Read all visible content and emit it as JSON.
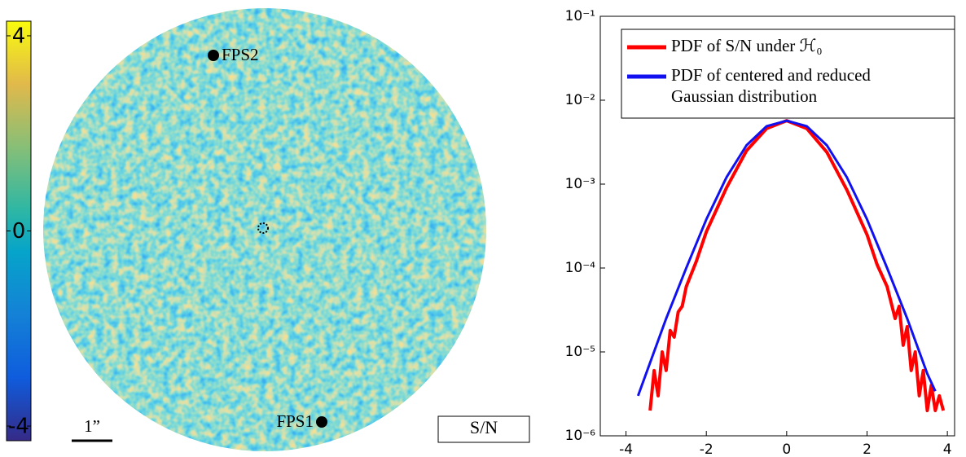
{
  "chart_data": [
    {
      "type": "image",
      "colorbar": {
        "clim": [
          -4.3,
          4.3
        ],
        "ticks": [
          4,
          0,
          -4
        ]
      },
      "annotations": [
        "FPS2",
        "FPS1"
      ],
      "scale_label": "1”",
      "label": "S/N"
    },
    {
      "type": "line",
      "log_y": true,
      "xlim": [
        -4.64,
        4.18
      ],
      "xticks": [
        -4,
        -2,
        0,
        2,
        4
      ],
      "ylim": [
        1e-06,
        0.1
      ],
      "yticks": [
        {
          "value": 1e-06,
          "label": "10⁻⁶"
        },
        {
          "value": 1e-05,
          "label": "10⁻⁵"
        },
        {
          "value": 0.0001,
          "label": "10⁻⁴"
        },
        {
          "value": 0.001,
          "label": "10⁻³"
        },
        {
          "value": 0.01,
          "label": "10⁻²"
        },
        {
          "value": 0.1,
          "label": "10⁻¹"
        }
      ],
      "legend": "upper right",
      "series": [
        {
          "name": "PDF of S/N under ℋ₀",
          "color": "#ff0000",
          "x": [
            -3.4,
            -3.3,
            -3.2,
            -3.1,
            -3.0,
            -2.9,
            -2.8,
            -2.7,
            -2.6,
            -2.5,
            -2.25,
            -2.0,
            -1.5,
            -1.0,
            -0.5,
            0,
            0.5,
            1.0,
            1.5,
            2.0,
            2.25,
            2.5,
            2.7,
            2.8,
            2.9,
            3.0,
            3.1,
            3.2,
            3.3,
            3.4,
            3.5,
            3.6,
            3.7,
            3.8,
            3.9
          ],
          "values": [
            2e-06,
            6e-06,
            3e-06,
            1e-05,
            6e-06,
            1.8e-05,
            1.5e-05,
            3e-05,
            3.5e-05,
            6e-05,
            0.00012,
            0.00027,
            0.0009,
            0.0025,
            0.0046,
            0.0057,
            0.0046,
            0.0024,
            0.00085,
            0.00025,
            0.00011,
            6e-05,
            2.5e-05,
            3.5e-05,
            1.2e-05,
            2e-05,
            6e-06,
            1e-05,
            3e-06,
            6e-06,
            2e-06,
            4e-06,
            2e-06,
            3e-06,
            2e-06
          ]
        },
        {
          "name": "PDF of centered and reduced Gaussian distribution",
          "color": "#1010f0",
          "x": [
            -3.7,
            -3.5,
            -3.0,
            -2.5,
            -2.0,
            -1.5,
            -1.0,
            -0.5,
            0,
            0.5,
            1.0,
            1.5,
            2.0,
            2.5,
            3.0,
            3.5,
            3.7
          ],
          "values": [
            3e-06,
            5.5e-06,
            2.5e-05,
            0.0001,
            0.00038,
            0.0012,
            0.0029,
            0.0049,
            0.0057,
            0.0049,
            0.0029,
            0.0012,
            0.00038,
            0.0001,
            2.5e-05,
            5.5e-06,
            3.4e-06
          ]
        }
      ]
    }
  ]
}
